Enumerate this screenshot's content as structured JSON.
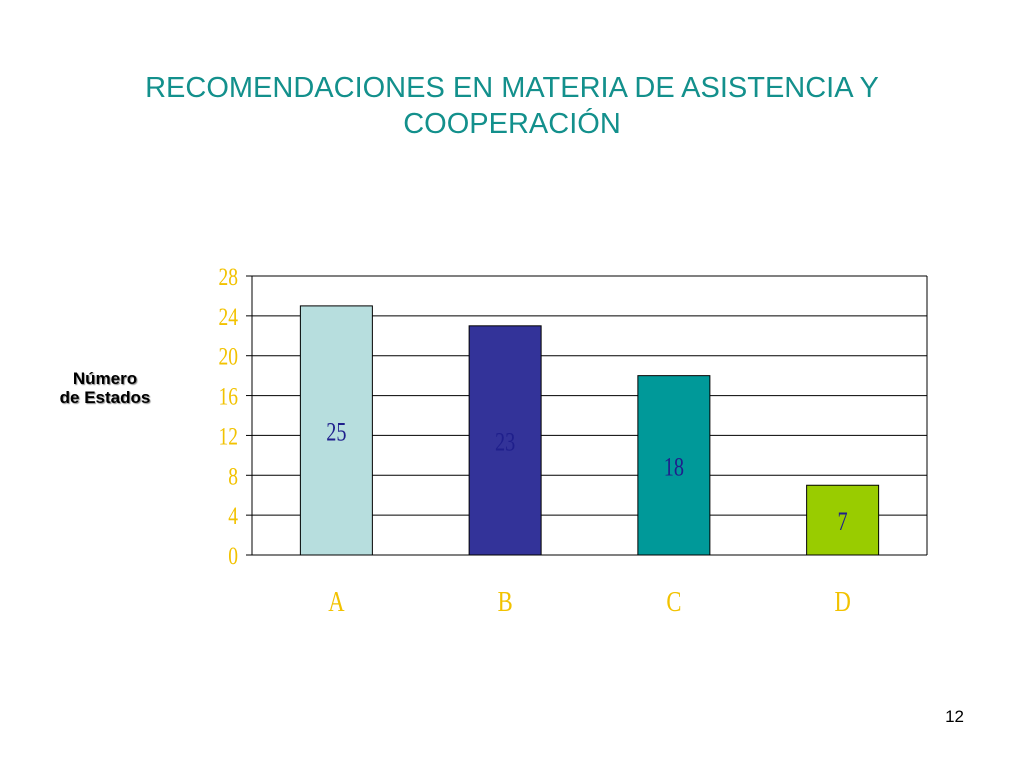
{
  "slide": {
    "title_line1": "RECOMENDACIONES EN MATERIA DE ASISTENCIA Y",
    "title_line2": "COOPERACIÓN",
    "page_number": "12"
  },
  "colors": {
    "title": "#13908C",
    "tick_labels": "#F2C200",
    "grid": "#000000",
    "data_labels": "#1F1F8C"
  },
  "chart_data": {
    "type": "bar",
    "ylabel_line1": "Número",
    "ylabel_line2": "de Estados",
    "categories": [
      "A",
      "B",
      "C",
      "D"
    ],
    "values": [
      25,
      23,
      18,
      7
    ],
    "data_labels": [
      "25",
      "23",
      "18",
      "7"
    ],
    "bar_colors": [
      "#B7DEDE",
      "#333399",
      "#009999",
      "#99CC00"
    ],
    "ylim": [
      0,
      28
    ],
    "yticks": [
      0,
      4,
      8,
      12,
      16,
      20,
      24,
      28
    ],
    "grid": true,
    "legend": "none"
  }
}
